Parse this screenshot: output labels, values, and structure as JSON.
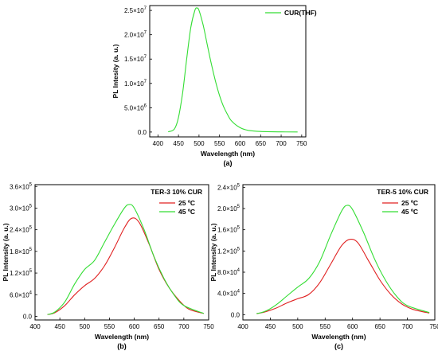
{
  "chart_data": [
    {
      "type": "line",
      "panel_label": "(a)",
      "xlabel": "Wavelength (nm)",
      "ylabel": "PL Intesity (a. u.)",
      "xlim": [
        380,
        760
      ],
      "ylim": [
        -1000000,
        26000000
      ],
      "xticks": [
        400,
        450,
        500,
        550,
        600,
        650,
        700,
        750
      ],
      "yticks": [
        {
          "value": 0,
          "mantissa": "0.0",
          "exp": ""
        },
        {
          "value": 5000000,
          "mantissa": "5.0×10",
          "exp": "6"
        },
        {
          "value": 10000000,
          "mantissa": "1.0×10",
          "exp": "7"
        },
        {
          "value": 15000000,
          "mantissa": "1.5×10",
          "exp": "7"
        },
        {
          "value": 20000000,
          "mantissa": "2.0×10",
          "exp": "7"
        },
        {
          "value": 25000000,
          "mantissa": "2.5×10",
          "exp": "7"
        }
      ],
      "legend_position": "top-right",
      "series": [
        {
          "name": "CUR(THF)",
          "color": "#33dd33",
          "x": [
            425,
            440,
            450,
            460,
            470,
            480,
            490,
            495,
            500,
            510,
            520,
            530,
            540,
            550,
            560,
            570,
            580,
            600,
            620,
            650,
            700,
            740
          ],
          "y": [
            50000,
            600000,
            3000000,
            8000000,
            15000000,
            21500000,
            25000000,
            25500000,
            25000000,
            22000000,
            18000000,
            14000000,
            10500000,
            7500000,
            5200000,
            3500000,
            2200000,
            900000,
            350000,
            120000,
            30000,
            10000
          ]
        }
      ]
    },
    {
      "type": "line",
      "panel_label": "(b)",
      "xlabel": "Wavelength (nm)",
      "ylabel": "PL Intensity (a. u.)",
      "xlim": [
        400,
        750
      ],
      "ylim": [
        -10000,
        365000
      ],
      "xticks": [
        400,
        450,
        500,
        550,
        600,
        650,
        700,
        750
      ],
      "yticks": [
        {
          "value": 0,
          "mantissa": "0.0",
          "exp": ""
        },
        {
          "value": 60000,
          "mantissa": "6.0×10",
          "exp": "4"
        },
        {
          "value": 120000,
          "mantissa": "1.2×10",
          "exp": "5"
        },
        {
          "value": 180000,
          "mantissa": "1.8×10",
          "exp": "5"
        },
        {
          "value": 240000,
          "mantissa": "2.4×10",
          "exp": "5"
        },
        {
          "value": 300000,
          "mantissa": "3.0×10",
          "exp": "5"
        },
        {
          "value": 360000,
          "mantissa": "3.6×10",
          "exp": "5"
        }
      ],
      "legend_title": "TER-3 10% CUR",
      "legend_position": "top-right",
      "series": [
        {
          "name": "25 ºC",
          "color": "#e02020",
          "x": [
            425,
            440,
            460,
            480,
            500,
            520,
            540,
            560,
            580,
            595,
            610,
            630,
            650,
            670,
            690,
            710,
            740
          ],
          "y": [
            5000,
            10000,
            30000,
            60000,
            85000,
            105000,
            140000,
            190000,
            245000,
            272000,
            260000,
            200000,
            130000,
            80000,
            45000,
            20000,
            8000
          ]
        },
        {
          "name": "45 ºC",
          "color": "#33dd33",
          "x": [
            425,
            440,
            460,
            480,
            500,
            520,
            540,
            560,
            580,
            590,
            600,
            620,
            640,
            660,
            680,
            700,
            740
          ],
          "y": [
            5000,
            12000,
            40000,
            90000,
            130000,
            155000,
            205000,
            255000,
            300000,
            310000,
            300000,
            240000,
            165000,
            105000,
            60000,
            30000,
            8000
          ]
        }
      ]
    },
    {
      "type": "line",
      "panel_label": "(c)",
      "xlabel": "Wavelength (nm)",
      "ylabel": "PL Intensity (a. u.)",
      "xlim": [
        400,
        750
      ],
      "ylim": [
        -10000,
        245000
      ],
      "xticks": [
        400,
        450,
        500,
        550,
        600,
        650,
        700,
        750
      ],
      "yticks": [
        {
          "value": 0,
          "mantissa": "0.0",
          "exp": ""
        },
        {
          "value": 40000,
          "mantissa": "4.0×10",
          "exp": "4"
        },
        {
          "value": 80000,
          "mantissa": "8.0×10",
          "exp": "4"
        },
        {
          "value": 120000,
          "mantissa": "1.2×10",
          "exp": "5"
        },
        {
          "value": 160000,
          "mantissa": "1.6×10",
          "exp": "5"
        },
        {
          "value": 200000,
          "mantissa": "2.0×10",
          "exp": "5"
        },
        {
          "value": 240000,
          "mantissa": "2.4×10",
          "exp": "5"
        }
      ],
      "legend_title": "TER-5 10% CUR",
      "legend_position": "top-right",
      "series": [
        {
          "name": "25 ºC",
          "color": "#e02020",
          "x": [
            425,
            440,
            460,
            480,
            500,
            520,
            540,
            560,
            580,
            595,
            610,
            630,
            650,
            670,
            690,
            710,
            740
          ],
          "y": [
            2000,
            5000,
            12000,
            22000,
            30000,
            38000,
            60000,
            95000,
            130000,
            142000,
            135000,
            100000,
            65000,
            38000,
            20000,
            10000,
            3000
          ]
        },
        {
          "name": "45 ºC",
          "color": "#33dd33",
          "x": [
            425,
            440,
            460,
            480,
            500,
            520,
            540,
            560,
            580,
            590,
            600,
            620,
            640,
            660,
            680,
            700,
            740
          ],
          "y": [
            2000,
            6000,
            18000,
            35000,
            52000,
            68000,
            100000,
            150000,
            195000,
            206000,
            198000,
            155000,
            105000,
            65000,
            35000,
            17000,
            4000
          ]
        }
      ]
    }
  ]
}
